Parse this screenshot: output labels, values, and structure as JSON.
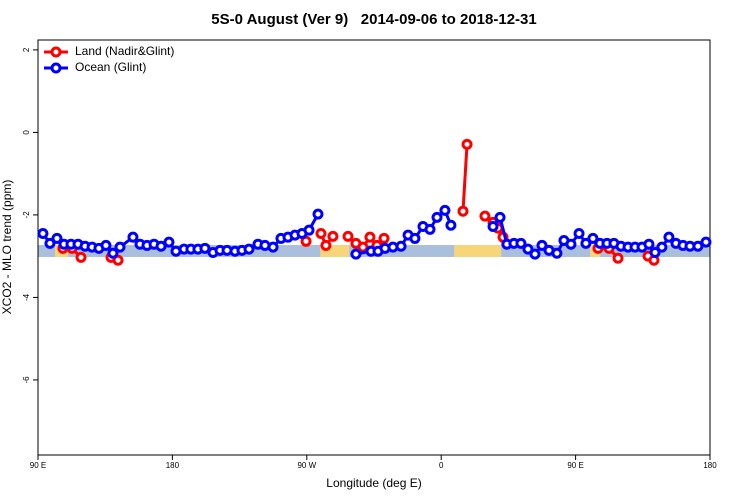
{
  "chart_data": {
    "type": "line",
    "title": "5S-0 August (Ver 9)   2014-09-06 to 2018-12-31",
    "x_label": "Longitude (deg E)",
    "y_label": "XCO2 - MLO trend (ppm)",
    "xlim": [
      -270,
      180
    ],
    "xticks": [
      {
        "value": -270,
        "label": "90 E"
      },
      {
        "value": -180,
        "label": "180"
      },
      {
        "value": -90,
        "label": "90 W"
      },
      0,
      {
        "value": 90,
        "label": "90 E"
      },
      180
    ],
    "ylim": [
      -7.82,
      2.24
    ],
    "yticks": [
      2,
      0,
      -2,
      -4,
      -6
    ],
    "legend": "top-left",
    "band": {
      "range": [
        -3.02,
        -2.73
      ],
      "color": "#a9bfdc",
      "highlight_color": "#f7d67a",
      "highlights": [
        [
          -258.6,
          -249.9
        ],
        [
          -81,
          -61.5
        ],
        [
          8.7,
          40.2
        ],
        [
          99.7,
          106.4
        ]
      ]
    },
    "series": [
      {
        "name": "Land (Nadir&Glint)",
        "color": "#ff0000",
        "x": [
          -253.3,
          -247.2,
          -241.2,
          null,
          -221.1,
          -216.4,
          null,
          -90.5,
          null,
          -80.5,
          -77.2,
          -72.5,
          null,
          -62.4,
          -57.1,
          -52.4,
          -47.7,
          -43,
          -38.3,
          null,
          14.6,
          17.3,
          null,
          29.3,
          34.7,
          38,
          41.4,
          null,
          105,
          112.4,
          118.4,
          null,
          138.5,
          142.5
        ],
        "values": [
          -2.81,
          -2.81,
          -3.03,
          null,
          -3.03,
          -3.1,
          null,
          -2.64,
          null,
          -2.45,
          -2.74,
          -2.52,
          null,
          -2.52,
          -2.69,
          -2.78,
          -2.54,
          -2.74,
          -2.57,
          null,
          -1.91,
          -0.29,
          null,
          -2.03,
          -2.18,
          -2.32,
          -2.54,
          null,
          -2.81,
          -2.81,
          -3.05,
          null,
          -3,
          -3.1
        ]
      },
      {
        "name": "Ocean (Glint)",
        "color": "#0000ff",
        "x": [
          -266.7,
          -262,
          -257.3,
          -252.6,
          -247.9,
          -243.2,
          -238.5,
          -233.8,
          -229.2,
          -224.5,
          -219.8,
          -215.1,
          -206.4,
          -201.7,
          -197,
          -192.3,
          -187.6,
          -182.3,
          -177.6,
          -172.2,
          -167.6,
          -162.9,
          -158.2,
          -152.8,
          -148.1,
          -143.4,
          -138.1,
          -133.4,
          -128.7,
          -122.7,
          -118,
          -112.6,
          -107.3,
          -102.6,
          -97.9,
          -93.2,
          -88.5,
          -82.5,
          null,
          -57.1,
          -47,
          -42.3,
          -37.6,
          -32.3,
          -26.9,
          -22.2,
          -17.6,
          -12.2,
          -7.5,
          -2.8,
          2.5,
          6.5,
          null,
          34.7,
          39.4,
          44,
          48.7,
          53.4,
          58.1,
          62.8,
          67.5,
          72.2,
          77.5,
          82.2,
          86.9,
          92.3,
          96.9,
          101.6,
          106.3,
          111,
          115.7,
          120.4,
          125.1,
          129.8,
          134.5,
          139.1,
          143.2,
          147.8,
          152.5,
          157.2,
          161.9,
          166.6,
          171.9,
          177.3
        ],
        "values": [
          -2.45,
          -2.69,
          -2.57,
          -2.71,
          -2.71,
          -2.71,
          -2.76,
          -2.78,
          -2.81,
          -2.74,
          -2.93,
          -2.78,
          -2.54,
          -2.71,
          -2.74,
          -2.71,
          -2.76,
          -2.66,
          -2.88,
          -2.83,
          -2.83,
          -2.83,
          -2.81,
          -2.91,
          -2.86,
          -2.86,
          -2.88,
          -2.86,
          -2.83,
          -2.71,
          -2.74,
          -2.78,
          -2.57,
          -2.54,
          -2.49,
          -2.45,
          -2.37,
          -1.98,
          null,
          -2.95,
          -2.88,
          -2.88,
          -2.81,
          -2.78,
          -2.76,
          -2.49,
          -2.57,
          -2.28,
          -2.35,
          -2.06,
          -1.89,
          -2.25,
          null,
          -2.28,
          -2.06,
          -2.71,
          -2.69,
          -2.69,
          -2.83,
          -2.95,
          -2.74,
          -2.86,
          -2.93,
          -2.62,
          -2.71,
          -2.45,
          -2.69,
          -2.57,
          -2.69,
          -2.69,
          -2.69,
          -2.76,
          -2.78,
          -2.78,
          -2.78,
          -2.71,
          -2.91,
          -2.78,
          -2.54,
          -2.69,
          -2.74,
          -2.76,
          -2.76,
          -2.66
        ]
      }
    ]
  }
}
